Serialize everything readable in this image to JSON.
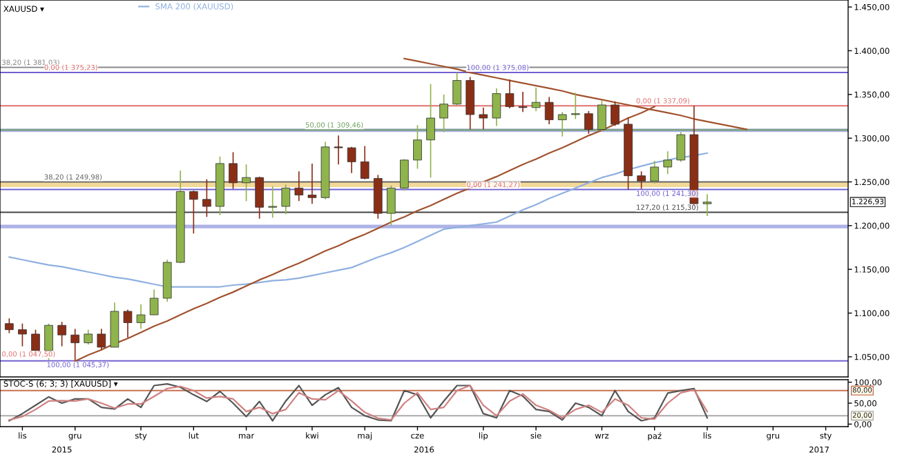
{
  "chart_data": [
    {
      "type": "candlestick",
      "title": "XAUUSD ▾",
      "legend": "top left",
      "grid": false,
      "tick_labels": "y",
      "categories": [
        null,
        null,
        null,
        null,
        null,
        null,
        null,
        null,
        null,
        null,
        null,
        null,
        null,
        null,
        null,
        null,
        null,
        null,
        null,
        null,
        null,
        null,
        null,
        null,
        null,
        null,
        null,
        null,
        null,
        null,
        null,
        null,
        null,
        null,
        null,
        null,
        null,
        null,
        null,
        null,
        null,
        null,
        null,
        null,
        null,
        null,
        null,
        null,
        null,
        null,
        null,
        null,
        null,
        null,
        null,
        null,
        null,
        null,
        null,
        null,
        null,
        null,
        null,
        null
      ],
      "ohlc": [
        [
          1088,
          1094,
          1077,
          1081
        ],
        [
          1081,
          1088,
          1062,
          1076
        ],
        [
          1076,
          1081,
          1052,
          1057
        ],
        [
          1057,
          1088,
          1046,
          1086
        ],
        [
          1086,
          1090,
          1062,
          1075
        ],
        [
          1075,
          1082,
          1046,
          1066
        ],
        [
          1066,
          1081,
          1064,
          1076
        ],
        [
          1076,
          1082,
          1058,
          1061
        ],
        [
          1061,
          1112,
          1061,
          1102
        ],
        [
          1102,
          1104,
          1072,
          1089
        ],
        [
          1089,
          1110,
          1082,
          1098
        ],
        [
          1098,
          1127,
          1098,
          1117
        ],
        [
          1117,
          1161,
          1113,
          1158
        ],
        [
          1158,
          1263,
          1157,
          1239
        ],
        [
          1239,
          1240,
          1191,
          1230
        ],
        [
          1230,
          1253,
          1210,
          1222
        ],
        [
          1222,
          1279,
          1212,
          1271
        ],
        [
          1271,
          1284,
          1242,
          1249
        ],
        [
          1249,
          1270,
          1228,
          1255
        ],
        [
          1255,
          1256,
          1208,
          1221
        ],
        [
          1221,
          1245,
          1209,
          1222
        ],
        [
          1222,
          1247,
          1213,
          1243
        ],
        [
          1243,
          1262,
          1228,
          1235
        ],
        [
          1235,
          1271,
          1225,
          1232
        ],
        [
          1232,
          1296,
          1230,
          1290
        ],
        [
          1290,
          1303,
          1270,
          1289
        ],
        [
          1289,
          1290,
          1260,
          1273
        ],
        [
          1273,
          1291,
          1253,
          1254
        ],
        [
          1254,
          1258,
          1208,
          1214
        ],
        [
          1214,
          1246,
          1200,
          1243
        ],
        [
          1243,
          1276,
          1240,
          1275
        ],
        [
          1275,
          1315,
          1265,
          1298
        ],
        [
          1298,
          1362,
          1255,
          1323
        ],
        [
          1323,
          1350,
          1307,
          1339
        ],
        [
          1339,
          1375,
          1337,
          1366
        ],
        [
          1366,
          1370,
          1310,
          1327
        ],
        [
          1327,
          1335,
          1310,
          1323
        ],
        [
          1323,
          1357,
          1314,
          1351
        ],
        [
          1351,
          1367,
          1334,
          1336
        ],
        [
          1336,
          1353,
          1330,
          1335
        ],
        [
          1335,
          1358,
          1331,
          1341
        ],
        [
          1341,
          1347,
          1316,
          1321
        ],
        [
          1321,
          1330,
          1302,
          1327
        ],
        [
          1327,
          1352,
          1322,
          1328
        ],
        [
          1328,
          1331,
          1305,
          1310
        ],
        [
          1310,
          1343,
          1308,
          1338
        ],
        [
          1338,
          1342,
          1314,
          1316
        ],
        [
          1316,
          1324,
          1241,
          1257
        ],
        [
          1257,
          1262,
          1242,
          1251
        ],
        [
          1251,
          1274,
          1248,
          1267
        ],
        [
          1267,
          1285,
          1259,
          1275
        ],
        [
          1275,
          1307,
          1273,
          1304
        ],
        [
          1304,
          1337,
          1220,
          1225
        ],
        [
          1225,
          1236,
          1211,
          1226.93
        ],
        null,
        null,
        null,
        null,
        null,
        null,
        null,
        null,
        null,
        null
      ],
      "colors": [
        "#8b2e16",
        "#8b2e16",
        "#8b2e16",
        "#8fb44c",
        "#8b2e16",
        "#8b2e16",
        "#8fb44c",
        "#8b2e16",
        "#8fb44c",
        "#8b2e16",
        "#8fb44c",
        "#8fb44c",
        "#8fb44c",
        "#8fb44c",
        "#8b2e16",
        "#8b2e16",
        "#8fb44c",
        "#8b2e16",
        "#8fb44c",
        "#8b2e16",
        "#8fb44c",
        "#8fb44c",
        "#8b2e16",
        "#8b2e16",
        "#8fb44c",
        "#8b2e16",
        "#8b2e16",
        "#8b2e16",
        "#8b2e16",
        "#8fb44c",
        "#8fb44c",
        "#8fb44c",
        "#8fb44c",
        "#8fb44c",
        "#8fb44c",
        "#8b2e16",
        "#8b2e16",
        "#8fb44c",
        "#8b2e16",
        "#8b2e16",
        "#8fb44c",
        "#8b2e16",
        "#8fb44c",
        "#8fb44c",
        "#8b2e16",
        "#8fb44c",
        "#8b2e16",
        "#8b2e16",
        "#8b2e16",
        "#8fb44c",
        "#8fb44c",
        "#8fb44c",
        "#8b2e16",
        "#8fb44c",
        null,
        null,
        null,
        null,
        null,
        null,
        null,
        null,
        null,
        null
      ],
      "series": [
        {
          "type": "line",
          "name": "SMA 200 (XAUUSD)",
          "color": "#8fb0e0",
          "values": [
            1164,
            1161,
            1158,
            1155,
            1153,
            1150,
            1147,
            1144,
            1141,
            1139,
            1136,
            1133,
            1130,
            1130,
            1130,
            1130,
            1130,
            1132,
            1133,
            1135,
            1137,
            1138,
            1140,
            1143,
            1146,
            1149,
            1152,
            1158,
            1164,
            1169,
            1175,
            1182,
            1189,
            1196,
            1198,
            1200,
            1202,
            1204,
            1211,
            1218,
            1224,
            1231,
            1237,
            1243,
            1249,
            1255,
            1259,
            1264,
            1268,
            1272,
            1275,
            1278,
            1280,
            1283,
            null,
            null,
            null,
            null,
            null,
            null,
            null,
            null,
            null,
            null
          ]
        },
        {
          "type": "line",
          "color": "#a0522d",
          "values": [
            null,
            null,
            null,
            null,
            null,
            1045,
            1052,
            1058,
            1065,
            1071,
            1078,
            1085,
            1091,
            1098,
            1105,
            1111,
            1118,
            1124,
            1131,
            1138,
            1144,
            1151,
            1157,
            1164,
            1171,
            1177,
            1184,
            1190,
            1197,
            1204,
            1210,
            1217,
            1223,
            1230,
            1237,
            1243,
            1250,
            1256,
            1263,
            1270,
            1276,
            1283,
            1289,
            1296,
            1303,
            1309,
            1316,
            1323,
            1329,
            1336,
            null,
            null,
            null,
            null,
            null,
            null,
            null,
            null,
            null,
            null,
            null,
            null,
            null,
            null
          ]
        },
        {
          "type": "line",
          "color": "#a0522d",
          "values": [
            null,
            null,
            null,
            null,
            null,
            null,
            null,
            null,
            null,
            null,
            null,
            null,
            null,
            null,
            null,
            null,
            null,
            null,
            null,
            null,
            null,
            null,
            null,
            null,
            null,
            null,
            null,
            null,
            null,
            null,
            1391,
            1388,
            1385,
            1382,
            1379,
            1375,
            1372,
            1369,
            1366,
            1363,
            1360,
            1357,
            1354,
            1350,
            1347,
            1344,
            1341,
            1338,
            1335,
            1332,
            1329,
            1326,
            1322,
            1319,
            1316,
            1313,
            1310,
            null,
            null,
            null,
            null,
            null,
            null,
            null
          ]
        }
      ],
      "ylim": [
        1027,
        1458
      ],
      "yticks": [
        {
          "value": 1050,
          "label": "1.050,00"
        },
        {
          "value": 1100,
          "label": "1.100,00"
        },
        {
          "value": 1150,
          "label": "1.150,00"
        },
        {
          "value": 1200,
          "label": "1.200,00"
        },
        {
          "value": 1250,
          "label": "1.250,00"
        },
        {
          "value": 1300,
          "label": "1.300,00"
        },
        {
          "value": 1350,
          "label": "1.350,00"
        },
        {
          "value": 1400,
          "label": "1.400,00"
        },
        {
          "value": 1450,
          "label": "1.450,00"
        }
      ],
      "ref_lines": [
        {
          "axis": "y",
          "value": 1381.03,
          "label": "38,20 (1 381,03)",
          "color": "#888888"
        },
        {
          "axis": "y",
          "value": 1375.08,
          "label": "100,00 (1 375,08)",
          "color": "#7060d0"
        },
        {
          "axis": "y",
          "value": 1337.09,
          "label": "0,00 (1 337,09)",
          "color": "#e07070"
        },
        {
          "axis": "y",
          "value": 1309.46,
          "label": "50,00 (1 309,46)",
          "color": "#70a060"
        },
        {
          "axis": "y",
          "value": 1249.98,
          "label": "38,20 (1 249,98)",
          "color": "#666666"
        },
        {
          "axis": "y",
          "value": 1241.3,
          "label": "100,00 (1 241,30)",
          "color": "#7060d0"
        },
        {
          "axis": "y",
          "value": 1215.3,
          "label": "127,20 (1 215,30)",
          "color": "#444444"
        },
        {
          "axis": "y",
          "value": 1045.37,
          "label": "100,00 (1 045,37)",
          "color": "#7060d0"
        }
      ],
      "bands": [
        {
          "axis": "y",
          "from": 1307,
          "to": 1311,
          "color": "#9aa0e0"
        },
        {
          "axis": "y",
          "from": 1244,
          "to": 1250,
          "color": "#f0d080"
        },
        {
          "axis": "y",
          "from": 1197,
          "to": 1201,
          "color": "#9aa0e0"
        }
      ],
      "annotations": [
        "1.226,93",
        {
          "text": "0,00 (1 375,23)",
          "y": 1375.23
        },
        {
          "text": "0,00 (1 241,27)",
          "y": 1241.27
        },
        {
          "text": "0,00 (1 047,50)",
          "y": 1047.5
        }
      ]
    },
    {
      "type": "line",
      "title": "STOC-S (6; 3; 3) [XAUUSD] ▾",
      "grid": false,
      "categories": [
        null,
        "lis",
        null,
        null,
        null,
        "gru",
        null,
        null,
        null,
        null,
        "sty",
        null,
        null,
        null,
        "lut",
        null,
        null,
        null,
        "mar",
        null,
        null,
        null,
        null,
        "kwi",
        null,
        null,
        null,
        "maj",
        null,
        null,
        null,
        "cze",
        null,
        null,
        null,
        null,
        "lip",
        null,
        null,
        null,
        "sie",
        null,
        null,
        null,
        null,
        "wrz",
        null,
        null,
        null,
        "paź",
        null,
        null,
        null,
        "lis",
        null,
        null,
        null,
        null,
        "gru",
        null,
        null,
        null,
        "sty",
        null
      ],
      "series": [
        {
          "color": "#555555",
          "values": [
            8,
            25,
            45,
            65,
            50,
            60,
            60,
            40,
            36,
            60,
            40,
            92,
            96,
            88,
            70,
            54,
            78,
            50,
            18,
            54,
            8,
            55,
            92,
            45,
            70,
            87,
            40,
            20,
            10,
            8,
            80,
            70,
            15,
            55,
            92,
            92,
            25,
            15,
            80,
            67,
            35,
            30,
            10,
            50,
            40,
            20,
            80,
            30,
            8,
            15,
            74,
            80,
            85,
            15,
            null,
            null,
            null,
            null,
            null,
            null,
            null,
            null,
            null,
            null
          ]
        },
        {
          "color": "#d08080",
          "values": [
            10,
            18,
            35,
            55,
            56,
            55,
            60,
            50,
            38,
            48,
            48,
            66,
            85,
            90,
            80,
            62,
            66,
            60,
            30,
            40,
            25,
            35,
            75,
            60,
            58,
            80,
            55,
            28,
            14,
            10,
            50,
            75,
            35,
            40,
            80,
            92,
            45,
            20,
            55,
            72,
            45,
            33,
            15,
            35,
            45,
            28,
            60,
            45,
            15,
            12,
            50,
            75,
            82,
            30,
            null,
            null,
            null,
            null,
            null,
            null,
            null,
            null,
            null,
            null
          ]
        }
      ],
      "ylim": [
        -6,
        106
      ],
      "yticks": [
        {
          "value": 0,
          "label": "0,00"
        },
        {
          "value": 50,
          "label": "50,00"
        },
        {
          "value": 100,
          "label": "100,00"
        }
      ],
      "ref_lines": [
        {
          "axis": "y",
          "value": 80,
          "label": "80,00",
          "color": "#c87050"
        },
        {
          "axis": "y",
          "value": 20,
          "label": "20,00",
          "color": "#aaaaaa"
        }
      ],
      "annotations": [
        "2015",
        "2016",
        "2017"
      ]
    }
  ]
}
